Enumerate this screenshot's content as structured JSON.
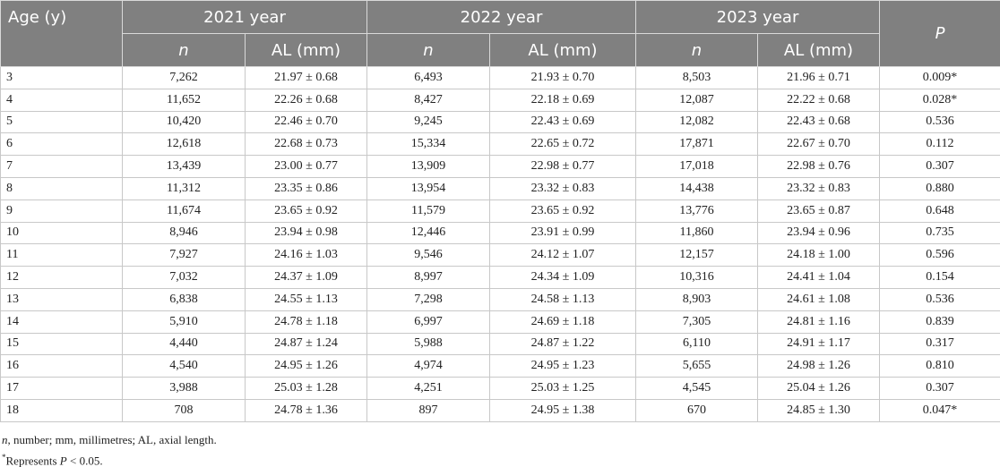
{
  "table": {
    "header": {
      "age": "Age (y)",
      "years": [
        {
          "label": "2021 year",
          "columns": [
            "n",
            "AL (mm)"
          ]
        },
        {
          "label": "2022 year",
          "columns": [
            "n",
            "AL (mm)"
          ]
        },
        {
          "label": "2023 year",
          "columns": [
            "n",
            "AL (mm)"
          ]
        }
      ],
      "p": "P"
    },
    "rows": [
      [
        "3",
        "7,262",
        "21.97 ± 0.68",
        "6,493",
        "21.93 ± 0.70",
        "8,503",
        "21.96 ± 0.71",
        "0.009*"
      ],
      [
        "4",
        "11,652",
        "22.26 ± 0.68",
        "8,427",
        "22.18 ± 0.69",
        "12,087",
        "22.22 ± 0.68",
        "0.028*"
      ],
      [
        "5",
        "10,420",
        "22.46 ± 0.70",
        "9,245",
        "22.43 ± 0.69",
        "12,082",
        "22.43 ± 0.68",
        "0.536"
      ],
      [
        "6",
        "12,618",
        "22.68 ± 0.73",
        "15,334",
        "22.65 ± 0.72",
        "17,871",
        "22.67 ± 0.70",
        "0.112"
      ],
      [
        "7",
        "13,439",
        "23.00 ± 0.77",
        "13,909",
        "22.98 ± 0.77",
        "17,018",
        "22.98 ± 0.76",
        "0.307"
      ],
      [
        "8",
        "11,312",
        "23.35 ± 0.86",
        "13,954",
        "23.32 ± 0.83",
        "14,438",
        "23.32 ± 0.83",
        "0.880"
      ],
      [
        "9",
        "11,674",
        "23.65 ± 0.92",
        "11,579",
        "23.65 ± 0.92",
        "13,776",
        "23.65 ± 0.87",
        "0.648"
      ],
      [
        "10",
        "8,946",
        "23.94 ± 0.98",
        "12,446",
        "23.91 ± 0.99",
        "11,860",
        "23.94 ± 0.96",
        "0.735"
      ],
      [
        "11",
        "7,927",
        "24.16 ± 1.03",
        "9,546",
        "24.12 ± 1.07",
        "12,157",
        "24.18 ± 1.00",
        "0.596"
      ],
      [
        "12",
        "7,032",
        "24.37 ± 1.09",
        "8,997",
        "24.34 ± 1.09",
        "10,316",
        "24.41 ± 1.04",
        "0.154"
      ],
      [
        "13",
        "6,838",
        "24.55 ± 1.13",
        "7,298",
        "24.58 ± 1.13",
        "8,903",
        "24.61 ± 1.08",
        "0.536"
      ],
      [
        "14",
        "5,910",
        "24.78 ± 1.18",
        "6,997",
        "24.69 ± 1.18",
        "7,305",
        "24.81 ± 1.16",
        "0.839"
      ],
      [
        "15",
        "4,440",
        "24.87 ± 1.24",
        "5,988",
        "24.87 ± 1.22",
        "6,110",
        "24.91 ± 1.17",
        "0.317"
      ],
      [
        "16",
        "4,540",
        "24.95 ± 1.26",
        "4,974",
        "24.95 ± 1.23",
        "5,655",
        "24.98 ± 1.26",
        "0.810"
      ],
      [
        "17",
        "3,988",
        "25.03 ± 1.28",
        "4,251",
        "25.03 ± 1.25",
        "4,545",
        "25.04 ± 1.26",
        "0.307"
      ],
      [
        "18",
        "708",
        "24.78 ± 1.36",
        "897",
        "24.95 ± 1.38",
        "670",
        "24.85 ± 1.30",
        "0.047*"
      ]
    ]
  },
  "footnotes": [
    [
      "n",
      ", number; mm, millimetres; AL, axial length."
    ],
    [
      "*",
      "Represents ",
      "P",
      " < 0.05."
    ]
  ]
}
